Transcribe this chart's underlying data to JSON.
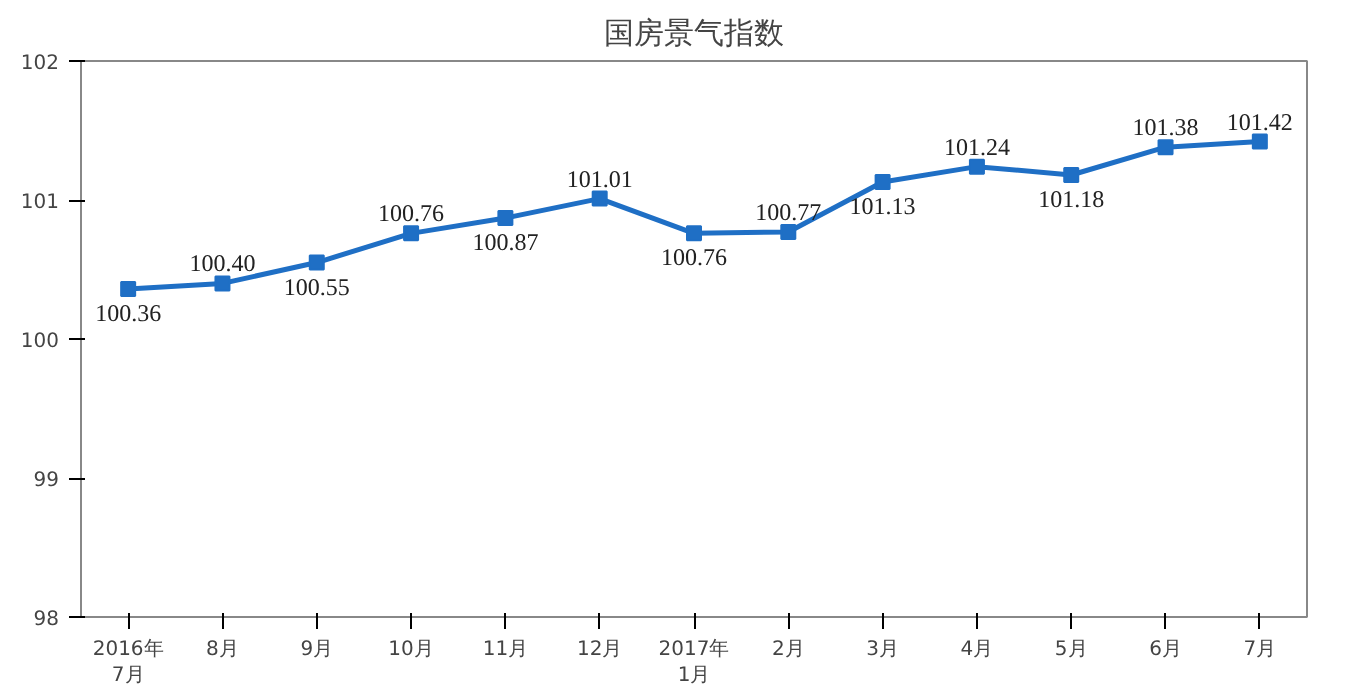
{
  "chart_data": {
    "type": "line",
    "title": "国房景气指数",
    "categories": [
      "2016年\n7月",
      "8月",
      "9月",
      "10月",
      "11月",
      "12月",
      "2017年\n1月",
      "2月",
      "3月",
      "4月",
      "5月",
      "6月",
      "7月"
    ],
    "series": [
      {
        "color": "#1f6fc5",
        "values": [
          100.36,
          100.4,
          100.55,
          100.76,
          100.87,
          101.01,
          100.76,
          100.77,
          101.13,
          101.24,
          101.18,
          101.38,
          101.42
        ],
        "value_labels": [
          "100.36",
          "100.40",
          "100.55",
          "100.76",
          "100.87",
          "101.01",
          "100.76",
          "100.77",
          "101.13",
          "101.24",
          "101.18",
          "101.38",
          "101.42"
        ]
      }
    ],
    "ylim": [
      98,
      102
    ],
    "yticks": [
      98,
      99,
      100,
      101,
      102
    ],
    "grid": false,
    "marker": "square",
    "line_style": "solid"
  }
}
